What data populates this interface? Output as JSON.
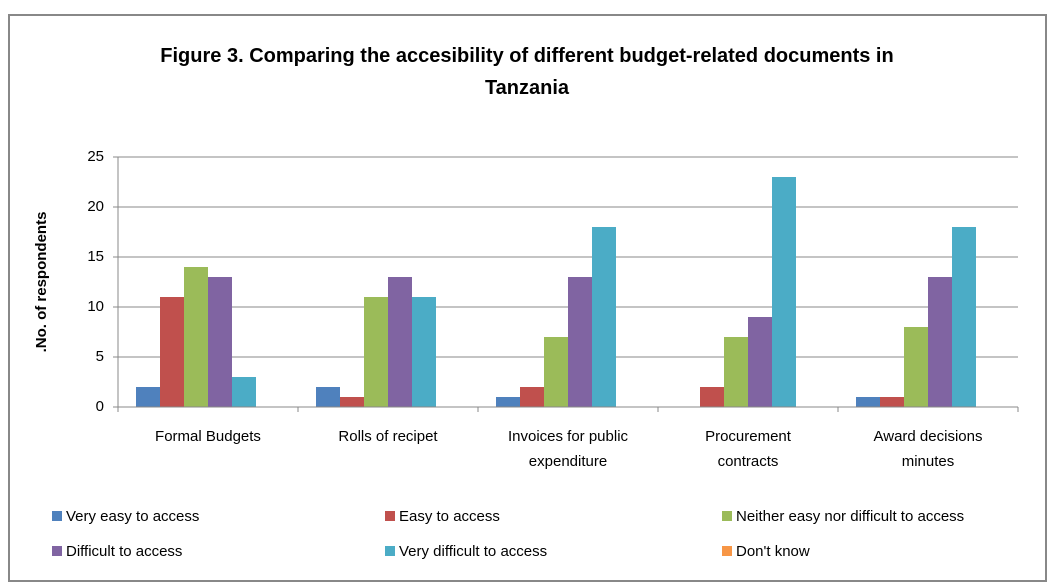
{
  "chart_data": {
    "type": "bar",
    "title": "Figure 3. Comparing the accesibility of different budget-related documents in Tanzania",
    "y_label": ".No. of respondents",
    "categories": [
      "Formal Budgets",
      "Rolls of recipet",
      "Invoices for public expenditure",
      "Procurement contracts",
      "Award decisions minutes"
    ],
    "series": [
      {
        "name": "Very easy to access",
        "color": "#4f81bd",
        "values": [
          2,
          2,
          1,
          0,
          1
        ]
      },
      {
        "name": "Easy to access",
        "color": "#c0504d",
        "values": [
          11,
          1,
          2,
          2,
          1
        ]
      },
      {
        "name": "Neither easy nor difficult to access",
        "color": "#9bbb59",
        "values": [
          14,
          11,
          7,
          7,
          8
        ]
      },
      {
        "name": "Difficult to access",
        "color": "#8064a2",
        "values": [
          13,
          13,
          13,
          9,
          13
        ]
      },
      {
        "name": "Very difficult to access",
        "color": "#4bacc6",
        "values": [
          3,
          11,
          18,
          23,
          18
        ]
      },
      {
        "name": "Don't know",
        "color": "#f79646",
        "values": [
          0,
          0,
          0,
          0,
          0
        ]
      }
    ],
    "ylim": [
      0,
      25
    ],
    "yticks": [
      0,
      5,
      10,
      15,
      20,
      25
    ],
    "grid": true,
    "legend": "bottom"
  }
}
